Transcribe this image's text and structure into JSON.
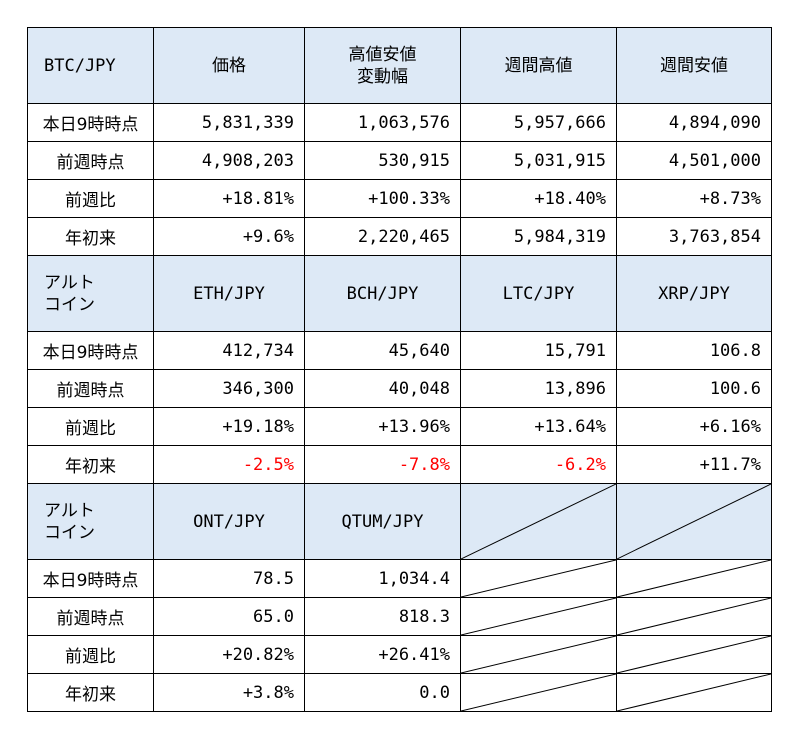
{
  "colors": {
    "header_bg": "#dde9f6",
    "negative": "#ff0000",
    "border": "#000000"
  },
  "sections": [
    {
      "header": [
        "BTC/JPY",
        "価格",
        "高値安値\n変動幅",
        "週間高値",
        "週間安値"
      ],
      "rows": [
        {
          "label": "本日9時時点",
          "values": [
            "5,831,339",
            "1,063,576",
            "5,957,666",
            "4,894,090"
          ]
        },
        {
          "label": "前週時点",
          "values": [
            "4,908,203",
            "530,915",
            "5,031,915",
            "4,501,000"
          ]
        },
        {
          "label": "前週比",
          "values": [
            "+18.81%",
            "+100.33%",
            "+18.40%",
            "+8.73%"
          ]
        },
        {
          "label": "年初来",
          "values": [
            "+9.6%",
            "2,220,465",
            "5,984,319",
            "3,763,854"
          ]
        }
      ]
    },
    {
      "header": [
        "アルト\nコイン",
        "ETH/JPY",
        "BCH/JPY",
        "LTC/JPY",
        "XRP/JPY"
      ],
      "rows": [
        {
          "label": "本日9時時点",
          "values": [
            "412,734",
            "45,640",
            "15,791",
            "106.8"
          ]
        },
        {
          "label": "前週時点",
          "values": [
            "346,300",
            "40,048",
            "13,896",
            "100.6"
          ]
        },
        {
          "label": "前週比",
          "values": [
            "+19.18%",
            "+13.96%",
            "+13.64%",
            "+6.16%"
          ]
        },
        {
          "label": "年初来",
          "values": [
            "-2.5%",
            "-7.8%",
            "-6.2%",
            "+11.7%"
          ]
        }
      ]
    },
    {
      "header": [
        "アルト\nコイン",
        "ONT/JPY",
        "QTUM/JPY",
        "",
        ""
      ],
      "rows": [
        {
          "label": "本日9時時点",
          "values": [
            "78.5",
            "1,034.4",
            "",
            ""
          ]
        },
        {
          "label": "前週時点",
          "values": [
            "65.0",
            "818.3",
            "",
            ""
          ]
        },
        {
          "label": "前週比",
          "values": [
            "+20.82%",
            "+26.41%",
            "",
            ""
          ]
        },
        {
          "label": "年初来",
          "values": [
            "+3.8%",
            "0.0",
            "",
            ""
          ]
        }
      ]
    }
  ]
}
